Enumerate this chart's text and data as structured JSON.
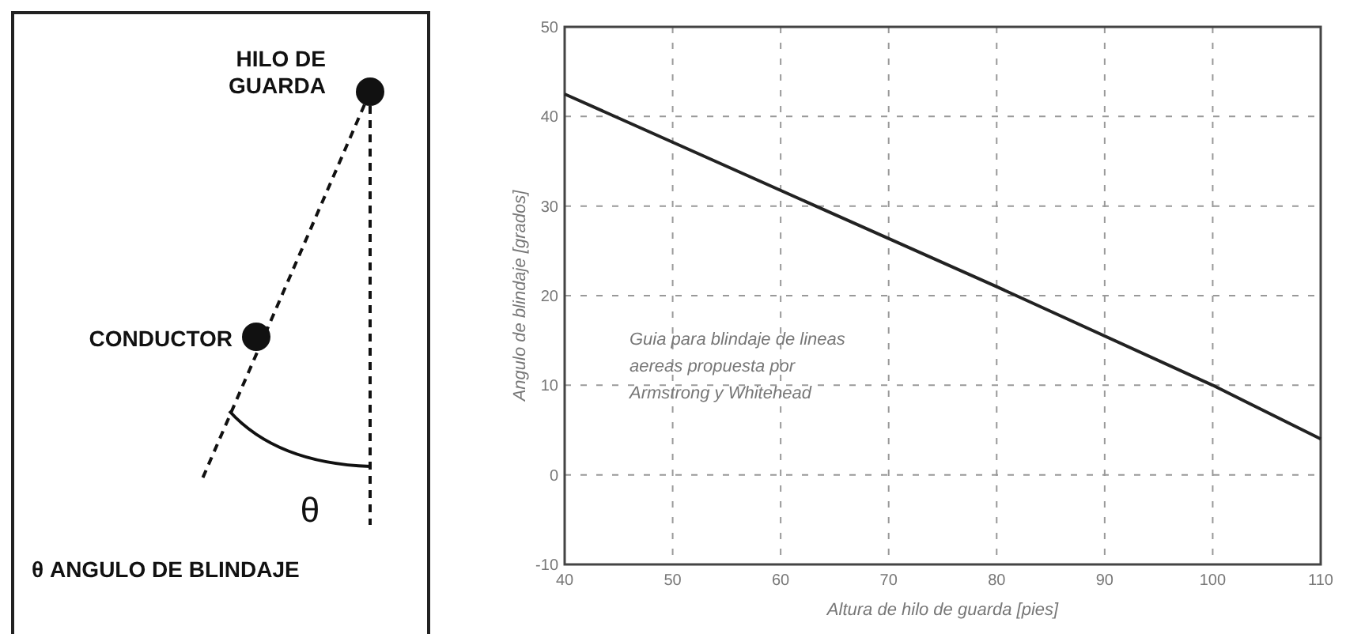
{
  "chart_data": [
    {
      "type": "other",
      "annotations": [
        "HILO DE\nGUARDA",
        "CONDUCTOR",
        "θ",
        "θ ANGULO DE BLINDAJE"
      ]
    },
    {
      "type": "line",
      "xlabel": "Altura de hilo de guarda [pies]",
      "ylabel": "Angulo de blindaje [grados]",
      "x": [
        40,
        80,
        100,
        110
      ],
      "series": [
        {
          "color": "#222222",
          "values": [
            42.5,
            21,
            10,
            4
          ]
        }
      ],
      "xlim": [
        40,
        110
      ],
      "xticks": [
        40,
        50,
        60,
        70,
        80,
        90,
        100,
        110
      ],
      "ylim": [
        -10,
        50
      ],
      "yticks": [
        -10,
        0,
        10,
        20,
        30,
        40,
        50
      ],
      "grid": true,
      "line_style": "solid",
      "annotations": [
        "Guia para blindaje de lineas\naereas propuesta por\nArmstrong y Whitehead"
      ]
    }
  ]
}
